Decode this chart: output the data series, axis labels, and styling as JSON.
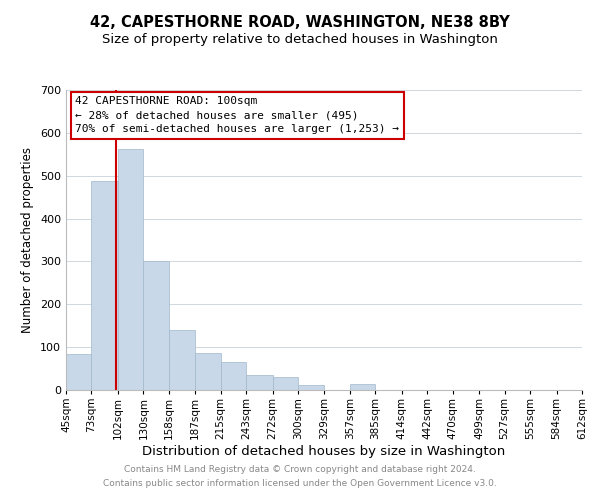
{
  "title": "42, CAPESTHORNE ROAD, WASHINGTON, NE38 8BY",
  "subtitle": "Size of property relative to detached houses in Washington",
  "xlabel": "Distribution of detached houses by size in Washington",
  "ylabel": "Number of detached properties",
  "bin_edges": [
    45,
    73,
    102,
    130,
    158,
    187,
    215,
    243,
    272,
    300,
    329,
    357,
    385,
    414,
    442,
    470,
    499,
    527,
    555,
    584,
    612
  ],
  "bar_heights": [
    83,
    487,
    562,
    302,
    140,
    86,
    65,
    35,
    30,
    12,
    0,
    13,
    0,
    0,
    0,
    0,
    0,
    0,
    0,
    0
  ],
  "bar_color": "#c8d8e8",
  "bar_edgecolor": "#a0b8cc",
  "vline_x": 100,
  "vline_color": "#cc0000",
  "ylim": [
    0,
    700
  ],
  "yticks": [
    0,
    100,
    200,
    300,
    400,
    500,
    600,
    700
  ],
  "annotation_title": "42 CAPESTHORNE ROAD: 100sqm",
  "annotation_line1": "← 28% of detached houses are smaller (495)",
  "annotation_line2": "70% of semi-detached houses are larger (1,253) →",
  "annotation_box_color": "#ffffff",
  "annotation_box_edgecolor": "#cc0000",
  "footer_line1": "Contains HM Land Registry data © Crown copyright and database right 2024.",
  "footer_line2": "Contains public sector information licensed under the Open Government Licence v3.0.",
  "title_fontsize": 10.5,
  "subtitle_fontsize": 9.5,
  "xlabel_fontsize": 9.5,
  "ylabel_fontsize": 8.5,
  "tick_fontsize": 7.5,
  "tick_labels": [
    "45sqm",
    "73sqm",
    "102sqm",
    "130sqm",
    "158sqm",
    "187sqm",
    "215sqm",
    "243sqm",
    "272sqm",
    "300sqm",
    "329sqm",
    "357sqm",
    "385sqm",
    "414sqm",
    "442sqm",
    "470sqm",
    "499sqm",
    "527sqm",
    "555sqm",
    "584sqm",
    "612sqm"
  ]
}
